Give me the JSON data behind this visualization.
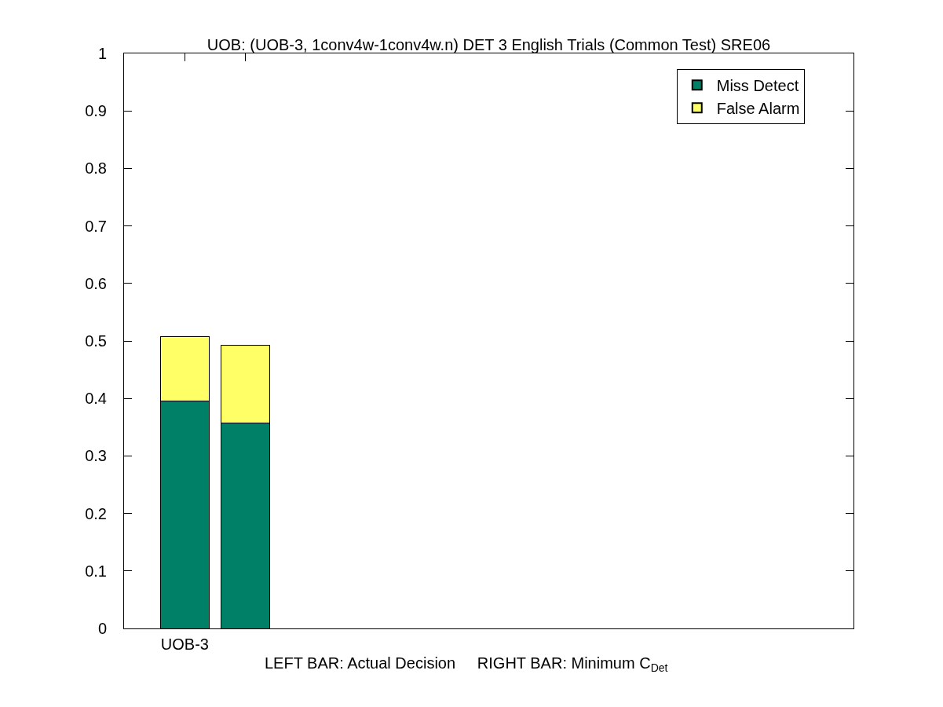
{
  "chart_data": {
    "type": "bar",
    "stacked": true,
    "title": "UOB: (UOB-3, 1conv4w-1conv4w.n) DET 3 English Trials (Common Test) SRE06",
    "xlabel": "LEFT BAR: Actual Decision     RIGHT BAR: Minimum C$_{Det}$",
    "categories": [
      "UOB-3",
      null,
      null,
      null,
      null,
      null,
      null,
      null,
      null,
      null,
      null
    ],
    "series": [
      {
        "name": "Miss Detect",
        "color": "#008066",
        "values": [
          0.395,
          0.357,
          null,
          null,
          null,
          null,
          null,
          null,
          null,
          null,
          null
        ]
      },
      {
        "name": "False Alarm",
        "color": "#ffff66",
        "values": [
          0.113,
          0.135,
          null,
          null,
          null,
          null,
          null,
          null,
          null,
          null,
          null
        ]
      }
    ],
    "ylim": [
      0,
      1
    ],
    "yticks": [
      0,
      0.1,
      0.2,
      0.3,
      0.4,
      0.5,
      0.6,
      0.7,
      0.8,
      0.9,
      1
    ],
    "grid": false,
    "legend": "top right"
  }
}
